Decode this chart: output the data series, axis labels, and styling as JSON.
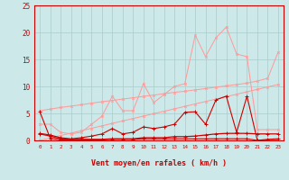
{
  "x": [
    0,
    1,
    2,
    3,
    4,
    5,
    6,
    7,
    8,
    9,
    10,
    11,
    12,
    13,
    14,
    15,
    16,
    17,
    18,
    19,
    20,
    21,
    22,
    23
  ],
  "line_flat_dark": [
    1.2,
    0.8,
    0.3,
    0.2,
    0.2,
    0.2,
    0.2,
    0.3,
    0.3,
    0.3,
    0.5,
    0.5,
    0.5,
    0.7,
    0.7,
    0.8,
    1.0,
    1.2,
    1.3,
    1.3,
    1.3,
    1.2,
    1.2,
    1.2
  ],
  "line_spiky_dark": [
    5.3,
    0.4,
    0.1,
    0.1,
    0.1,
    0.1,
    0.1,
    0.2,
    0.2,
    0.2,
    0.3,
    0.3,
    0.3,
    0.3,
    0.3,
    0.3,
    0.3,
    0.3,
    0.3,
    0.3,
    0.3,
    0.0,
    0.0,
    0.0
  ],
  "line_med_dark": [
    1.3,
    1.0,
    0.5,
    0.3,
    0.5,
    0.8,
    1.2,
    2.2,
    1.2,
    1.5,
    2.5,
    2.2,
    2.5,
    3.0,
    5.2,
    5.3,
    3.0,
    7.5,
    8.2,
    1.5,
    8.2,
    0.0,
    0.2,
    0.3
  ],
  "line_slope_low": [
    0.0,
    0.45,
    0.9,
    1.35,
    1.8,
    2.25,
    2.7,
    3.15,
    3.6,
    4.05,
    4.5,
    4.95,
    5.4,
    5.85,
    6.3,
    6.75,
    7.2,
    7.65,
    8.1,
    8.55,
    9.0,
    9.45,
    9.9,
    10.35
  ],
  "line_slope_high": [
    5.5,
    5.8,
    6.1,
    6.35,
    6.6,
    6.9,
    7.15,
    7.4,
    7.65,
    7.9,
    8.15,
    8.4,
    8.65,
    8.9,
    9.1,
    9.35,
    9.6,
    9.85,
    10.1,
    10.35,
    10.6,
    11.0,
    11.5,
    16.3
  ],
  "line_rafales": [
    3.0,
    3.0,
    1.5,
    1.2,
    1.5,
    3.0,
    4.5,
    8.2,
    5.5,
    5.5,
    10.5,
    7.0,
    8.5,
    10.0,
    10.5,
    19.5,
    15.5,
    19.0,
    21.0,
    16.0,
    15.5,
    2.0,
    2.0,
    2.0
  ],
  "bg_color": "#cce8e8",
  "grid_color": "#aacccc",
  "color_dark": "#cc0000",
  "color_light": "#ff9999",
  "xlabel": "Vent moyen/en rafales ( km/h )",
  "xlim": [
    -0.5,
    23.5
  ],
  "ylim": [
    0,
    25
  ],
  "yticks": [
    0,
    5,
    10,
    15,
    20,
    25
  ],
  "xticks": [
    0,
    1,
    2,
    3,
    4,
    5,
    6,
    7,
    8,
    9,
    10,
    11,
    12,
    13,
    14,
    15,
    16,
    17,
    18,
    19,
    20,
    21,
    22,
    23
  ]
}
